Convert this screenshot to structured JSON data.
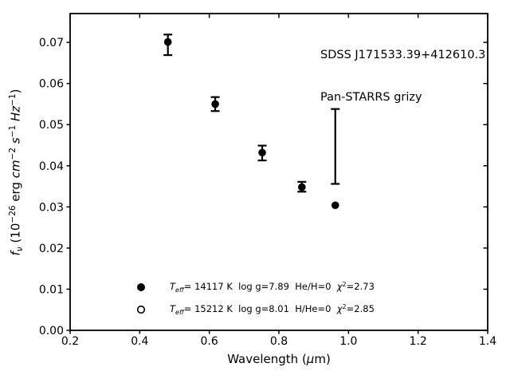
{
  "figure": {
    "background": "#ffffff",
    "foreground": "#000000"
  },
  "chart_data": {
    "type": "scatter",
    "title": "",
    "xlabel": "Wavelength (μm)",
    "ylabel": "f_ν (10^−26 erg cm^−2 s^−1 Hz^−1)",
    "xlim": [
      0.2,
      1.4
    ],
    "ylim": [
      0,
      0.077
    ],
    "grid": false,
    "xticks": {
      "values": [
        0.2,
        0.4,
        0.6,
        0.8,
        1.0,
        1.2,
        1.4
      ],
      "labels": [
        "0.2",
        "0.4",
        "0.6",
        "0.8",
        "1.0",
        "1.2",
        "1.4"
      ]
    },
    "yticks": {
      "values": [
        0.0,
        0.01,
        0.02,
        0.03,
        0.04,
        0.05,
        0.06,
        0.07
      ],
      "labels": [
        "0.00",
        "0.01",
        "0.02",
        "0.03",
        "0.04",
        "0.05",
        "0.06",
        "0.07"
      ]
    },
    "annotations": {
      "position": "top-right",
      "lines": [
        "SDSS J171533.39+412610.3",
        "Pan-STARRS grizy"
      ]
    },
    "series": [
      {
        "name": "observed-photometry",
        "type": "errorbar",
        "color": "#000000",
        "x": [
          0.481,
          0.617,
          0.752,
          0.866,
          0.962
        ],
        "y": [
          0.0694,
          0.055,
          0.0431,
          0.0349,
          0.0447
        ],
        "yerr": [
          0.0025,
          0.0017,
          0.0018,
          0.0012,
          0.0091
        ]
      },
      {
        "name": "model-fluxes",
        "type": "scatter",
        "marker": "filled-circle",
        "color": "#000000",
        "x": [
          0.481,
          0.617,
          0.752,
          0.866,
          0.962
        ],
        "y": [
          0.0701,
          0.055,
          0.0432,
          0.0348,
          0.0304
        ]
      }
    ],
    "legend": {
      "position": "lower-center",
      "entries": [
        {
          "marker": "filled-circle",
          "parts": [
            {
              "t": "T",
              "style": "italic"
            },
            {
              "t": "eff",
              "style": "sub-italic"
            },
            {
              "t": "= 14117 K  log g=7.89  He/H=0  "
            },
            {
              "t": "χ",
              "style": "italic"
            },
            {
              "t": "2",
              "style": "sup"
            },
            {
              "t": "=2.73"
            }
          ]
        },
        {
          "marker": "open-circle",
          "parts": [
            {
              "t": "T",
              "style": "italic"
            },
            {
              "t": "eff",
              "style": "sub-italic"
            },
            {
              "t": "= 15212 K  log g=8.01  H/He=0  "
            },
            {
              "t": "χ",
              "style": "italic"
            },
            {
              "t": "2",
              "style": "sup"
            },
            {
              "t": "=2.85"
            }
          ]
        }
      ]
    },
    "xlabel_parts": [
      {
        "t": "Wavelength ("
      },
      {
        "t": "μ",
        "style": "italic"
      },
      {
        "t": "m)"
      }
    ],
    "ylabel_parts": [
      {
        "t": "f",
        "style": "italic"
      },
      {
        "t": "ν",
        "style": "sub-italic"
      },
      {
        "t": " (10"
      },
      {
        "t": "−26",
        "style": "sup"
      },
      {
        "t": " erg "
      },
      {
        "t": "cm",
        "style": "italic"
      },
      {
        "t": "−2",
        "style": "sup"
      },
      {
        "t": " "
      },
      {
        "t": "s",
        "style": "italic"
      },
      {
        "t": "−1",
        "style": "sup"
      },
      {
        "t": " "
      },
      {
        "t": "Hz",
        "style": "italic"
      },
      {
        "t": "−1",
        "style": "sup"
      },
      {
        "t": ")"
      }
    ]
  }
}
